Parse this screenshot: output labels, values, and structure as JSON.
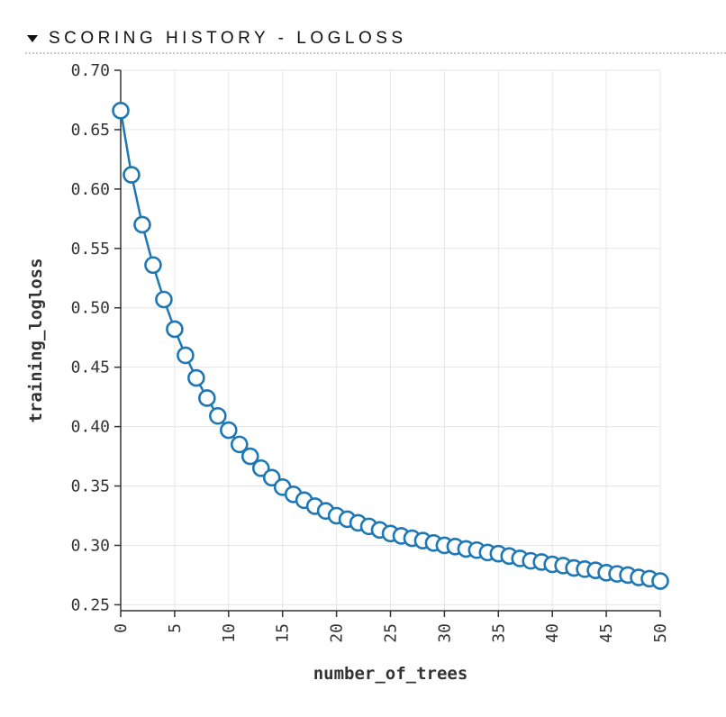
{
  "section": {
    "title": "SCORING HISTORY - LOGLOSS",
    "caret_icon": "caret-down-icon"
  },
  "chart_data": {
    "type": "line",
    "markers": "circle",
    "color": "#1f77b4",
    "xlabel": "number_of_trees",
    "ylabel": "training_logloss",
    "xlim": [
      0,
      50
    ],
    "ylim": [
      0.245,
      0.7
    ],
    "xticks": [
      "0",
      "5",
      "10",
      "15",
      "20",
      "25",
      "30",
      "35",
      "40",
      "45",
      "50"
    ],
    "yticks": [
      "0.25",
      "0.30",
      "0.35",
      "0.40",
      "0.45",
      "0.50",
      "0.55",
      "0.60",
      "0.65",
      "0.70"
    ],
    "grid": true,
    "x": [
      0,
      1,
      2,
      3,
      4,
      5,
      6,
      7,
      8,
      9,
      10,
      11,
      12,
      13,
      14,
      15,
      16,
      17,
      18,
      19,
      20,
      21,
      22,
      23,
      24,
      25,
      26,
      27,
      28,
      29,
      30,
      31,
      32,
      33,
      34,
      35,
      36,
      37,
      38,
      39,
      40,
      41,
      42,
      43,
      44,
      45,
      46,
      47,
      48,
      49,
      50
    ],
    "series": [
      {
        "values": [
          0.666,
          0.612,
          0.57,
          0.536,
          0.507,
          0.482,
          0.46,
          0.441,
          0.424,
          0.409,
          0.397,
          0.385,
          0.375,
          0.365,
          0.357,
          0.349,
          0.343,
          0.338,
          0.333,
          0.329,
          0.325,
          0.322,
          0.319,
          0.316,
          0.313,
          0.31,
          0.308,
          0.306,
          0.304,
          0.302,
          0.3,
          0.299,
          0.297,
          0.296,
          0.294,
          0.293,
          0.291,
          0.289,
          0.287,
          0.286,
          0.284,
          0.283,
          0.281,
          0.28,
          0.279,
          0.277,
          0.276,
          0.275,
          0.273,
          0.272,
          0.27
        ]
      }
    ]
  }
}
